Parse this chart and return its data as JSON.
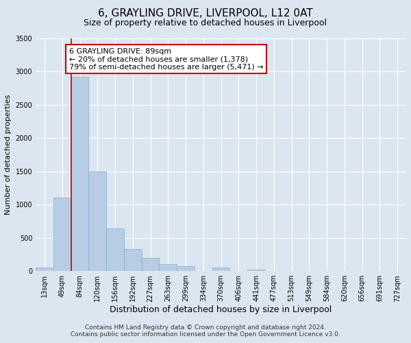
{
  "title": "6, GRAYLING DRIVE, LIVERPOOL, L12 0AT",
  "subtitle": "Size of property relative to detached houses in Liverpool",
  "xlabel": "Distribution of detached houses by size in Liverpool",
  "ylabel": "Number of detached properties",
  "bin_labels": [
    "13sqm",
    "49sqm",
    "84sqm",
    "120sqm",
    "156sqm",
    "192sqm",
    "227sqm",
    "263sqm",
    "299sqm",
    "334sqm",
    "370sqm",
    "406sqm",
    "441sqm",
    "477sqm",
    "513sqm",
    "549sqm",
    "584sqm",
    "620sqm",
    "656sqm",
    "691sqm",
    "727sqm"
  ],
  "bin_values": [
    50,
    1110,
    2920,
    1500,
    640,
    330,
    200,
    100,
    70,
    0,
    50,
    0,
    20,
    0,
    0,
    0,
    0,
    0,
    0,
    0,
    0
  ],
  "bar_color": "#b8cce4",
  "bar_edge_color": "#7bafd4",
  "property_line_color": "#cc0000",
  "annotation_title": "6 GRAYLING DRIVE: 89sqm",
  "annotation_line1": "← 20% of detached houses are smaller (1,378)",
  "annotation_line2": "79% of semi-detached houses are larger (5,471) →",
  "annotation_box_color": "#ffffff",
  "annotation_box_edge": "#cc0000",
  "ylim": [
    0,
    3500
  ],
  "yticks": [
    0,
    500,
    1000,
    1500,
    2000,
    2500,
    3000,
    3500
  ],
  "background_color": "#dce6f0",
  "plot_background": "#dce6f0",
  "footer_line1": "Contains HM Land Registry data © Crown copyright and database right 2024.",
  "footer_line2": "Contains public sector information licensed under the Open Government Licence v3.0.",
  "title_fontsize": 11,
  "subtitle_fontsize": 9,
  "xlabel_fontsize": 9,
  "ylabel_fontsize": 8,
  "tick_fontsize": 7,
  "footer_fontsize": 6.5,
  "ann_fontsize": 8
}
